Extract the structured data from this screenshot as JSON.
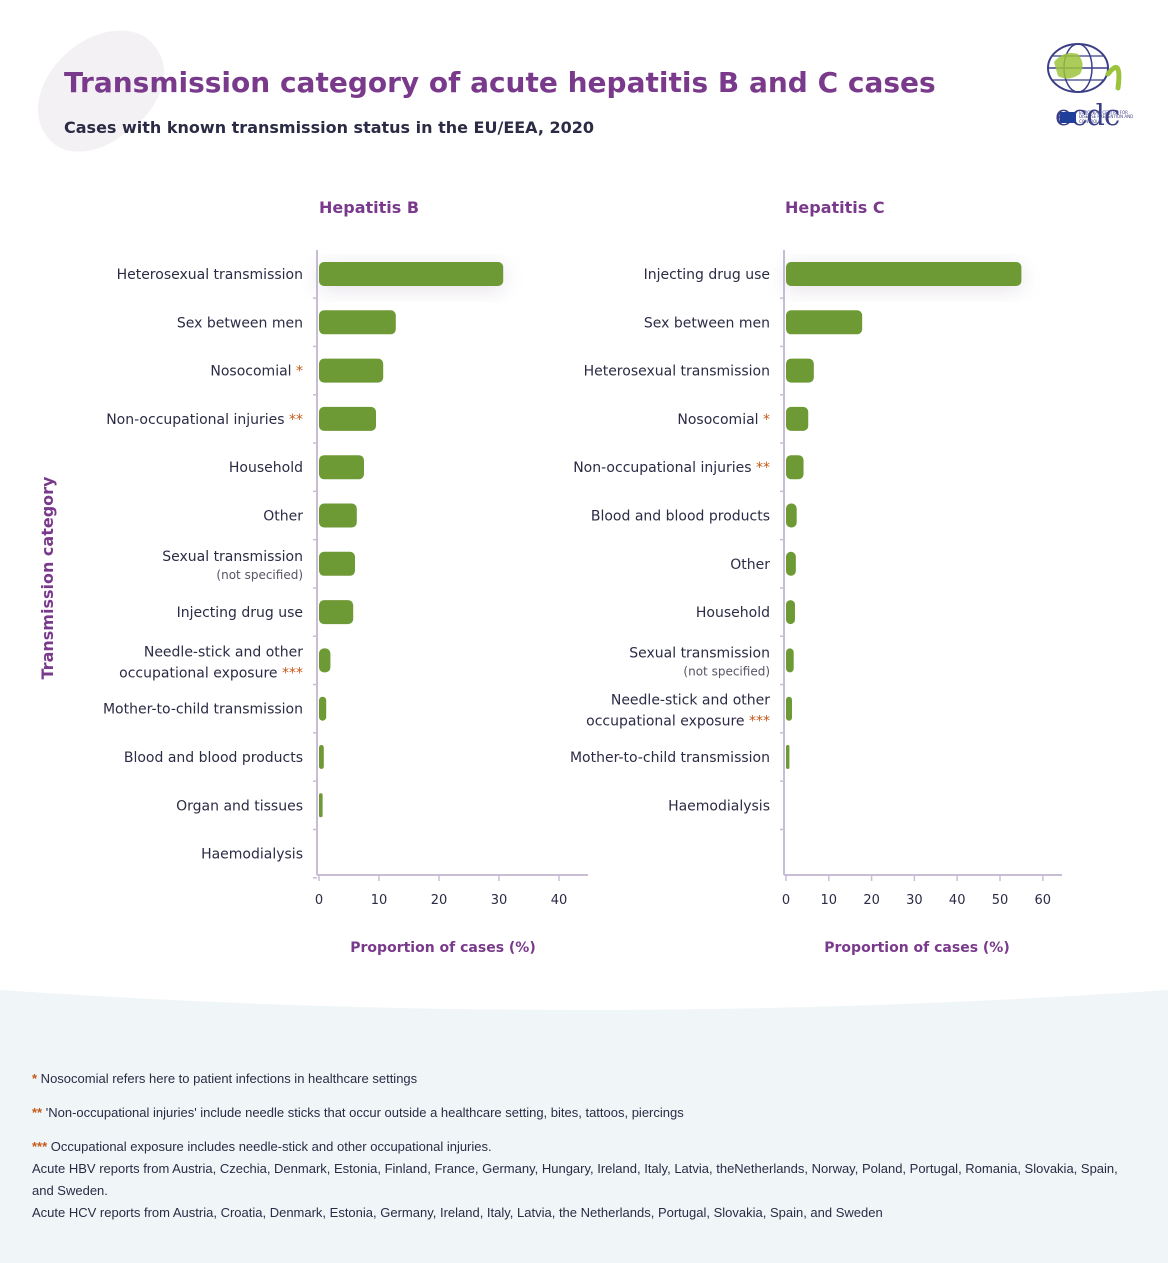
{
  "header": {
    "title": "Transmission category of acute hepatitis B and C cases",
    "subtitle": "Cases with known transmission status in the EU/EEA, 2020"
  },
  "logo": {
    "wordmark": "ecdc",
    "eu_text": "EUROPEAN CENTRE FOR DISEASE PREVENTION AND CONTROL"
  },
  "colors": {
    "bar": "#6e9a35",
    "accent": "#7a3a8c",
    "footnote_marker": "#c45a1a",
    "axis": "#c9bdd6"
  },
  "chart_data": [
    {
      "type": "bar",
      "orientation": "horizontal",
      "title": "Hepatitis B",
      "xlabel": "Proportion of cases (%)",
      "ylabel": "Transmission category",
      "xlim": [
        0,
        45
      ],
      "xticks": [
        0,
        10,
        20,
        30,
        40
      ],
      "categories": [
        {
          "label": "Heterosexual transmission",
          "marker": "",
          "sub": ""
        },
        {
          "label": "Sex between men",
          "marker": "",
          "sub": ""
        },
        {
          "label": "Nosocomial",
          "marker": "*",
          "sub": ""
        },
        {
          "label": "Non-occupational injuries",
          "marker": "**",
          "sub": ""
        },
        {
          "label": "Household",
          "marker": "",
          "sub": ""
        },
        {
          "label": "Other",
          "marker": "",
          "sub": ""
        },
        {
          "label": "Sexual transmission",
          "marker": "",
          "sub": "(not specified)"
        },
        {
          "label": "Injecting drug use",
          "marker": "",
          "sub": ""
        },
        {
          "label": "Needle-stick and other|occupational exposure",
          "marker": "***",
          "sub": ""
        },
        {
          "label": "Mother-to-child transmission",
          "marker": "",
          "sub": ""
        },
        {
          "label": "Blood and blood products",
          "marker": "",
          "sub": ""
        },
        {
          "label": "Organ and tissues",
          "marker": "",
          "sub": ""
        },
        {
          "label": "Haemodialysis",
          "marker": "",
          "sub": ""
        }
      ],
      "values": [
        30.7,
        12.8,
        10.7,
        9.5,
        7.5,
        6.3,
        6.0,
        5.7,
        1.9,
        1.2,
        0.8,
        0.6,
        0.0
      ]
    },
    {
      "type": "bar",
      "orientation": "horizontal",
      "title": "Hepatitis C",
      "xlabel": "Proportion of cases (%)",
      "ylabel": "",
      "xlim": [
        0,
        65
      ],
      "xticks": [
        0,
        10,
        20,
        30,
        40,
        50,
        60
      ],
      "categories": [
        {
          "label": "Injecting drug use",
          "marker": "",
          "sub": ""
        },
        {
          "label": "Sex between men",
          "marker": "",
          "sub": ""
        },
        {
          "label": "Heterosexual transmission",
          "marker": "",
          "sub": ""
        },
        {
          "label": "Nosocomial",
          "marker": "*",
          "sub": ""
        },
        {
          "label": "Non-occupational injuries",
          "marker": "**",
          "sub": ""
        },
        {
          "label": "Blood and blood products",
          "marker": "",
          "sub": ""
        },
        {
          "label": "Other",
          "marker": "",
          "sub": ""
        },
        {
          "label": "Household",
          "marker": "",
          "sub": ""
        },
        {
          "label": "Sexual transmission",
          "marker": "",
          "sub": "(not specified)"
        },
        {
          "label": "Needle-stick and other|occupational exposure",
          "marker": "***",
          "sub": ""
        },
        {
          "label": "Mother-to-child transmission",
          "marker": "",
          "sub": ""
        },
        {
          "label": "Haemodialysis",
          "marker": "",
          "sub": ""
        }
      ],
      "values": [
        55.0,
        17.8,
        6.5,
        5.2,
        4.1,
        2.5,
        2.3,
        2.1,
        1.8,
        1.4,
        0.8,
        0.0
      ]
    }
  ],
  "footnotes": [
    {
      "marker": "*",
      "text": " Nosocomial refers here to patient infections in healthcare settings"
    },
    {
      "marker": "**",
      "text": " 'Non-occupational injuries' include needle sticks that occur outside a healthcare setting, bites, tattoos, piercings"
    },
    {
      "marker": "***",
      "text": " Occupational exposure includes needle-stick and other occupational injuries."
    }
  ],
  "notes": [
    "Acute HBV reports from Austria, Czechia, Denmark, Estonia, Finland, France, Germany, Hungary, Ireland, Italy, Latvia, theNetherlands, Norway, Poland, Portugal, Romania, Slovakia, Spain, and Sweden.",
    "Acute HCV reports from Austria, Croatia, Denmark, Estonia, Germany, Ireland, Italy, Latvia, the Netherlands, Portugal, Slovakia, Spain, and Sweden"
  ]
}
